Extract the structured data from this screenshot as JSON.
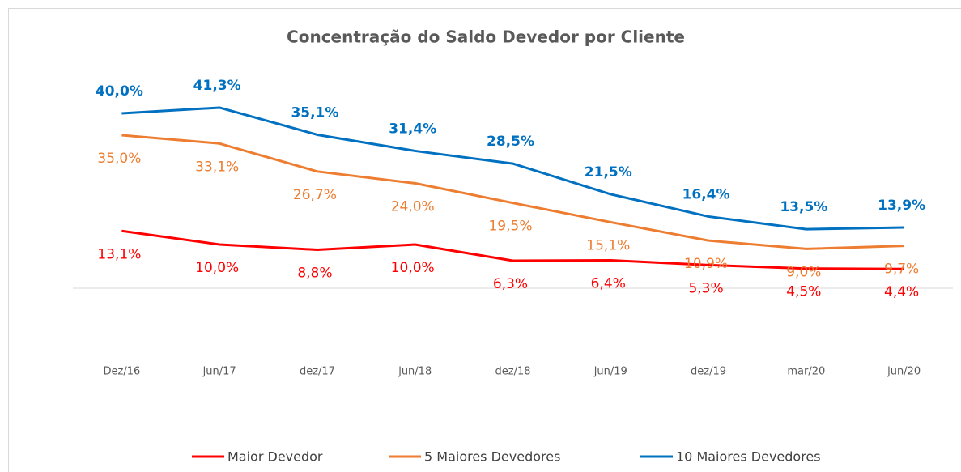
{
  "chart_data": {
    "type": "line",
    "title": "Concentração do Saldo Devedor por Cliente",
    "categories": [
      "Dez/16",
      "jun/17",
      "dez/17",
      "jun/18",
      "dez/18",
      "jun/19",
      "dez/19",
      "mar/20",
      "jun/20"
    ],
    "series": [
      {
        "name": "Maior Devedor",
        "color": "#ff0000",
        "values": [
          13.1,
          10.0,
          8.8,
          10.0,
          6.3,
          6.4,
          5.3,
          4.5,
          4.4
        ],
        "value_labels": [
          "13,1%",
          "10,0%",
          "8,8%",
          "10,0%",
          "6,3%",
          "6,4%",
          "5,3%",
          "4,5%",
          "4,4%"
        ]
      },
      {
        "name": "5 Maiores Devedores",
        "color": "#ed7d31",
        "values": [
          35.0,
          33.1,
          26.7,
          24.0,
          19.5,
          15.1,
          10.9,
          9.0,
          9.7
        ],
        "value_labels": [
          "35,0%",
          "33,1%",
          "26,7%",
          "24,0%",
          "19,5%",
          "15,1%",
          "10,9%",
          "9,0%",
          "9,7%"
        ]
      },
      {
        "name": "10 Maiores Devedores",
        "color": "#0070c0",
        "values": [
          40.0,
          41.3,
          35.1,
          31.4,
          28.5,
          21.5,
          16.4,
          13.5,
          13.9
        ],
        "value_labels": [
          "40,0%",
          "41,3%",
          "35,1%",
          "31,4%",
          "28,5%",
          "21,5%",
          "16,4%",
          "13,5%",
          "13,9%"
        ]
      }
    ],
    "ylim": [
      -20,
      45
    ],
    "legend": "bottom"
  }
}
